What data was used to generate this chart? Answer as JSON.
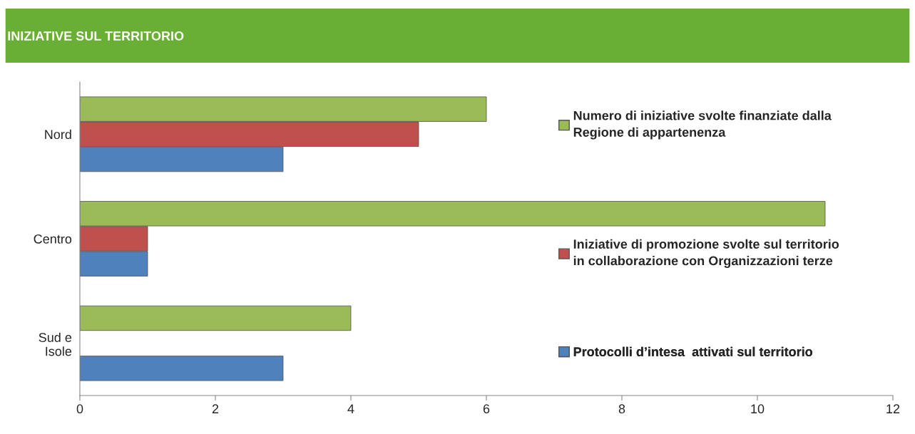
{
  "chart_data": {
    "type": "bar",
    "orientation": "horizontal",
    "title": "INIZIATIVE SUL TERRITORIO",
    "categories": [
      "Nord",
      "Centro",
      "Sud e Isole"
    ],
    "series": [
      {
        "name": "Numero di iniziative svolte finanziate dalla Regione di appartenenza",
        "color": "#9bbb59",
        "values": [
          6,
          11,
          4
        ]
      },
      {
        "name": "Iniziative di promozione svolte sul territorio in collaborazione con Organizzazioni terze",
        "color": "#c0504d",
        "values": [
          5,
          1,
          null
        ]
      },
      {
        "name": "Protocolli d’intesa  attivati sul territorio",
        "color": "#4f81bd",
        "values": [
          3,
          1,
          3
        ]
      }
    ],
    "xlim": [
      0,
      12
    ],
    "xticks": [
      0,
      2,
      4,
      6,
      8,
      10,
      12
    ],
    "grid": false,
    "legend": "right"
  }
}
